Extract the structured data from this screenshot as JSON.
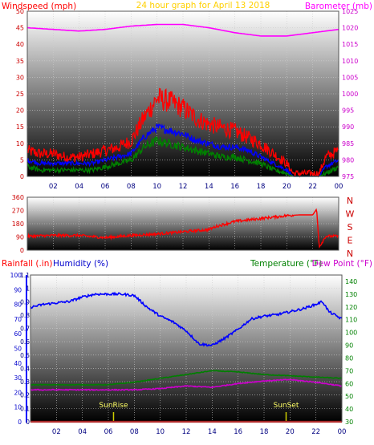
{
  "chart_data": [
    {
      "type": "line",
      "title": "24 hour graph for  April 13 2018",
      "left_axis_label": "Windspeed (mph)",
      "right_axis_label": "Barometer (mb)",
      "left_ticks": [
        "0",
        "5",
        "10",
        "15",
        "20",
        "25",
        "30",
        "35",
        "40",
        "45",
        "50"
      ],
      "right_ticks": [
        "975",
        "980",
        "985",
        "990",
        "995",
        "1000",
        "1005",
        "1010",
        "1015",
        "1020",
        "1025"
      ],
      "ylim_left": [
        0,
        50
      ],
      "ylim_right": [
        975,
        1025
      ],
      "x_ticks": [
        "02",
        "04",
        "06",
        "08",
        "10",
        "12",
        "14",
        "16",
        "18",
        "20",
        "22",
        "00"
      ],
      "x_hours": [
        0,
        24
      ],
      "series": [
        {
          "key": "gust",
          "color": "#ff0000",
          "x": [
            0,
            1,
            2,
            3,
            4,
            5,
            6,
            7,
            8,
            9,
            10,
            11,
            12,
            13,
            14,
            15,
            16,
            17,
            18,
            19,
            20,
            20.5,
            21,
            22,
            22.5,
            23,
            24
          ],
          "values": [
            8,
            7,
            7,
            6,
            6,
            7,
            8,
            9,
            11,
            18,
            24,
            23,
            21,
            18,
            16,
            15,
            14,
            12,
            10,
            7,
            4,
            1,
            1,
            1,
            1,
            6,
            8
          ]
        },
        {
          "key": "avg_speed",
          "color": "#0000ff",
          "x": [
            0,
            1,
            2,
            3,
            4,
            5,
            6,
            7,
            8,
            9,
            10,
            11,
            12,
            13,
            14,
            15,
            16,
            17,
            18,
            19,
            20,
            20.5,
            21,
            22,
            22.5,
            23,
            24
          ],
          "values": [
            5,
            4,
            4,
            4,
            4,
            4,
            5,
            6,
            7,
            12,
            15,
            14,
            13,
            11,
            10,
            9,
            9,
            8,
            6,
            4,
            2,
            0,
            0,
            0,
            0,
            3,
            5
          ]
        },
        {
          "key": "speed",
          "color": "#008000",
          "x": [
            0,
            1,
            2,
            3,
            4,
            5,
            6,
            7,
            8,
            9,
            10,
            11,
            12,
            13,
            14,
            15,
            16,
            17,
            18,
            19,
            20,
            20.5,
            21,
            22,
            22.5,
            23,
            24
          ],
          "values": [
            3,
            2,
            2,
            2,
            2,
            2,
            3,
            4,
            5,
            9,
            11,
            10,
            9,
            8,
            7,
            6,
            6,
            5,
            4,
            2,
            1,
            0,
            0,
            0,
            0,
            1,
            3
          ]
        },
        {
          "key": "barometer",
          "color": "#ff00ff",
          "axis": "right",
          "x": [
            0,
            2,
            4,
            6,
            8,
            10,
            12,
            14,
            16,
            18,
            20,
            22,
            24
          ],
          "values": [
            1020,
            1019.5,
            1019,
            1019.5,
            1020.5,
            1021,
            1021,
            1020,
            1018.5,
            1017.5,
            1017.5,
            1018.5,
            1019.5
          ]
        }
      ]
    },
    {
      "type": "line",
      "title": "",
      "left_ticks": [
        "0",
        "90",
        "180",
        "270",
        "360"
      ],
      "right_ticks": [
        "N",
        "W",
        "S",
        "E",
        "N"
      ],
      "ylim": [
        0,
        360
      ],
      "x_hours": [
        0,
        24
      ],
      "series": [
        {
          "key": "direction",
          "color": "#ff0000",
          "x": [
            0,
            2,
            4,
            6,
            8,
            10,
            12,
            14,
            14.5,
            16,
            18,
            20,
            21,
            22,
            22.3,
            22.5,
            23,
            24
          ],
          "values": [
            95,
            100,
            100,
            85,
            100,
            110,
            125,
            140,
            160,
            195,
            215,
            235,
            240,
            240,
            280,
            20,
            95,
            95
          ]
        }
      ]
    },
    {
      "type": "line",
      "labels": {
        "rainfall": "Rainfall (.in)",
        "humidity": "Humidity (%)",
        "temperature": "Temperature (°F)",
        "dew_point": "Dew Point (°F)"
      },
      "humidity_ticks": [
        "0",
        "10",
        "20",
        "30",
        "40",
        "50",
        "60",
        "70",
        "80",
        "90",
        "100"
      ],
      "rain_ticks": [
        "0",
        "0.1",
        "0.2",
        "0.3",
        "0.4",
        "0.5",
        "0.6",
        "0.7",
        "0.8",
        "0.9",
        "1",
        "1.1"
      ],
      "temp_ticks": [
        "30",
        "40",
        "50",
        "60",
        "70",
        "80",
        "90",
        "100",
        "110",
        "120",
        "130",
        "140"
      ],
      "ylim_humidity": [
        0,
        100
      ],
      "ylim_rain": [
        0,
        1.1
      ],
      "ylim_temp": [
        30,
        145
      ],
      "x_ticks": [
        "02",
        "04",
        "06",
        "08",
        "10",
        "12",
        "14",
        "16",
        "18",
        "20",
        "22",
        "00"
      ],
      "x_hours": [
        0,
        24
      ],
      "annotations": [
        {
          "text": "SunRise",
          "hour": 6.4
        },
        {
          "text": "SunSet",
          "hour": 19.7
        }
      ],
      "series": [
        {
          "key": "humidity",
          "color": "#0000ff",
          "axis": "humidity",
          "x": [
            0,
            1,
            2,
            3,
            4,
            5,
            6,
            7,
            8,
            9,
            10,
            11,
            12,
            13,
            14,
            15,
            16,
            17,
            18,
            19,
            20,
            21,
            22,
            22.5,
            23,
            24
          ],
          "values": [
            78,
            80,
            81,
            82,
            85,
            87,
            87,
            87,
            86,
            78,
            72,
            68,
            62,
            53,
            52,
            57,
            63,
            70,
            72,
            73,
            75,
            77,
            80,
            82,
            75,
            70
          ]
        },
        {
          "key": "temperature",
          "color": "#008000",
          "axis": "temp",
          "x": [
            0,
            2,
            4,
            6,
            8,
            10,
            12,
            14,
            16,
            18,
            20,
            22,
            24
          ],
          "values": [
            59,
            59,
            59,
            59,
            61,
            64,
            67,
            70,
            69,
            67,
            66,
            65,
            64
          ]
        },
        {
          "key": "dew_point",
          "color": "#cc00cc",
          "axis": "temp",
          "x": [
            0,
            2,
            4,
            6,
            8,
            10,
            12,
            14,
            16,
            18,
            20,
            22,
            24
          ],
          "values": [
            55,
            55,
            55,
            55,
            55,
            56,
            58,
            57,
            60,
            62,
            63,
            61,
            58
          ]
        },
        {
          "key": "rainfall",
          "color": "#ff0000",
          "axis": "rain",
          "x": [
            0,
            24
          ],
          "values": [
            0,
            0
          ]
        }
      ]
    }
  ]
}
